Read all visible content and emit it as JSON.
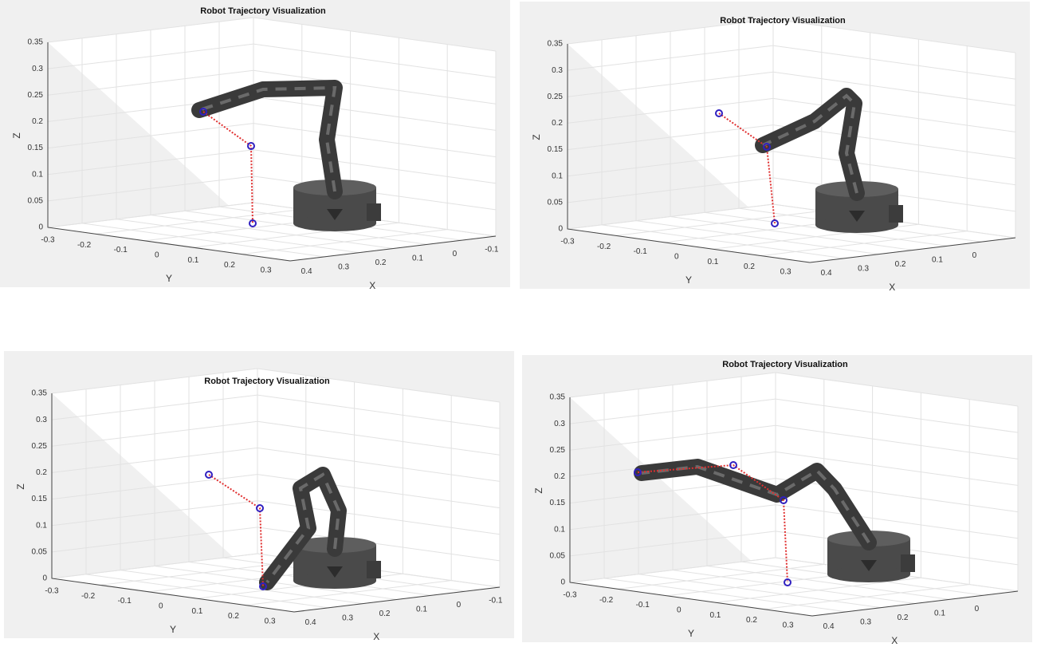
{
  "panels": [
    {
      "title": "Robot Trajectory Visualization",
      "z_label": "Z",
      "y_label": "Y",
      "x_label": "X",
      "z_ticks": [
        "0",
        "0.05",
        "0.1",
        "0.15",
        "0.2",
        "0.25",
        "0.3",
        "0.35"
      ],
      "y_ticks": [
        "-0.3",
        "-0.2",
        "-0.1",
        "0",
        "0.1",
        "0.2",
        "0.3"
      ],
      "x_ticks": [
        "0.4",
        "0.3",
        "0.2",
        "0.1",
        "0",
        "-0.1"
      ]
    },
    {
      "title": "Robot Trajectory Visualization",
      "z_label": "Z",
      "y_label": "Y",
      "x_label": "X",
      "z_ticks": [
        "0",
        "0.05",
        "0.1",
        "0.15",
        "0.2",
        "0.25",
        "0.3",
        "0.35"
      ],
      "y_ticks": [
        "-0.3",
        "-0.2",
        "-0.1",
        "0",
        "0.1",
        "0.2",
        "0.3"
      ],
      "x_ticks": [
        "0.4",
        "0.3",
        "0.2",
        "0.1",
        "0"
      ]
    },
    {
      "title": "Robot Trajectory Visualization",
      "z_label": "Z",
      "y_label": "Y",
      "x_label": "X",
      "z_ticks": [
        "0",
        "0.05",
        "0.1",
        "0.15",
        "0.2",
        "0.25",
        "0.3",
        "0.35"
      ],
      "y_ticks": [
        "-0.3",
        "-0.2",
        "-0.1",
        "0",
        "0.1",
        "0.2",
        "0.3"
      ],
      "x_ticks": [
        "0.4",
        "0.3",
        "0.2",
        "0.1",
        "0",
        "-0.1"
      ]
    },
    {
      "title": "Robot Trajectory Visualization",
      "z_label": "Z",
      "y_label": "Y",
      "x_label": "X",
      "z_ticks": [
        "0",
        "0.05",
        "0.1",
        "0.15",
        "0.2",
        "0.25",
        "0.3",
        "0.35"
      ],
      "y_ticks": [
        "-0.3",
        "-0.2",
        "-0.1",
        "0",
        "0.1",
        "0.2",
        "0.3"
      ],
      "x_ticks": [
        "0.4",
        "0.3",
        "0.2",
        "0.1",
        "0"
      ]
    }
  ]
}
